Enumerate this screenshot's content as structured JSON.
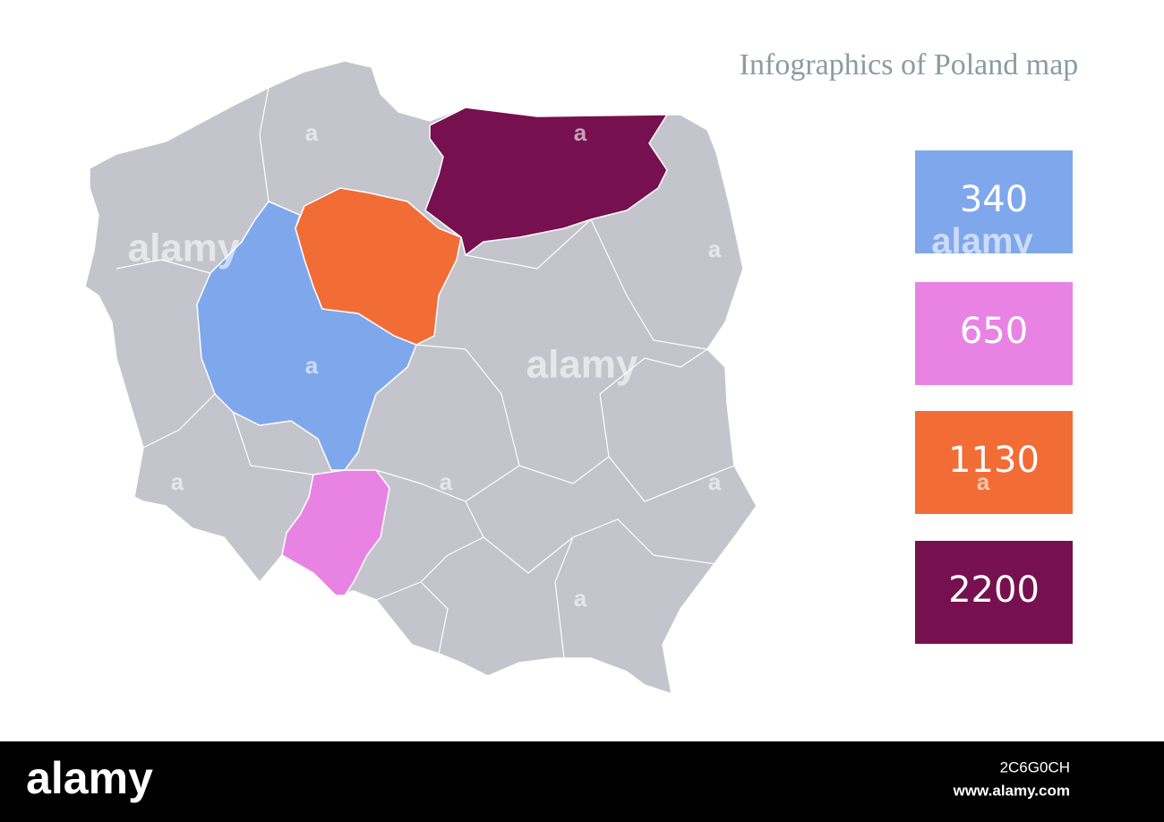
{
  "title": "Infographics of Poland map",
  "legend": [
    {
      "value": 340,
      "color": "#7fa7ec"
    },
    {
      "value": 650,
      "color": "#e883e3"
    },
    {
      "value": 1130,
      "color": "#f26c36"
    },
    {
      "value": 2200,
      "color": "#76104f"
    }
  ],
  "watermark": {
    "brand": "alamy",
    "mark": "a",
    "image_id": "2C6G0CH",
    "url": "www.alamy.com"
  }
}
